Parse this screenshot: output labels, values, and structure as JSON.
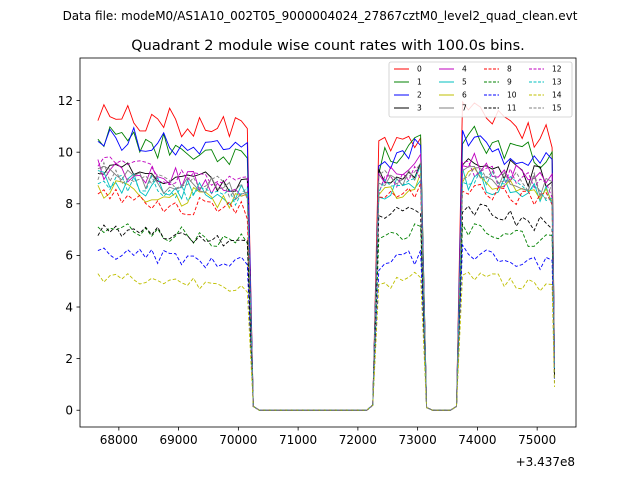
{
  "header": {
    "datafile": "Data file: modeM0/AS1A10_002T05_9000004024_27867cztM0_level2_quad_clean.evt"
  },
  "chart_data": {
    "type": "line",
    "title": "Quadrant 2 module wise count rates with 100.0s bins.",
    "xlabel": "",
    "ylabel": "",
    "x_offset_label": "+3.437e8",
    "xlim": [
      67350,
      75650
    ],
    "ylim": [
      -0.65,
      13.65
    ],
    "x_ticks": [
      68000,
      69000,
      70000,
      71000,
      72000,
      73000,
      74000,
      75000
    ],
    "x_tick_labels": [
      "68000",
      "69000",
      "70000",
      "71000",
      "72000",
      "73000",
      "74000",
      "75000"
    ],
    "y_ticks": [
      0,
      2,
      4,
      6,
      8,
      10,
      12
    ],
    "y_tick_labels": [
      "0",
      "2",
      "4",
      "6",
      "8",
      "10",
      "12"
    ],
    "grid": false,
    "legend_position": "top-right",
    "legend_columns": 4,
    "bins": {
      "x_step": 100,
      "segment1_start": 67650,
      "segment1_end": 70150,
      "gap1": [
        70250,
        72250
      ],
      "segment2_start": 72250,
      "segment2_end": 73050,
      "gap2": [
        73150,
        73650
      ],
      "segment3_start": 73750,
      "segment3_end": 75250
    },
    "series": [
      {
        "name": "0",
        "color": "#ff0000",
        "dash": "solid",
        "mean1": 11.2,
        "mean2": 10.5,
        "mean3": 11.0
      },
      {
        "name": "1",
        "color": "#008000",
        "dash": "solid",
        "mean1": 10.2,
        "mean2": 9.9,
        "mean3": 10.2
      },
      {
        "name": "2",
        "color": "#0000ff",
        "dash": "solid",
        "mean1": 10.3,
        "mean2": 9.9,
        "mean3": 10.0
      },
      {
        "name": "3",
        "color": "#000000",
        "dash": "solid",
        "mean1": 9.0,
        "mean2": 9.2,
        "mean3": 9.3
      },
      {
        "name": "4",
        "color": "#bf00bf",
        "dash": "solid",
        "mean1": 9.0,
        "mean2": 9.3,
        "mean3": 9.3
      },
      {
        "name": "5",
        "color": "#00bfbf",
        "dash": "solid",
        "mean1": 8.6,
        "mean2": 8.8,
        "mean3": 8.6
      },
      {
        "name": "6",
        "color": "#bfbf00",
        "dash": "solid",
        "mean1": 8.3,
        "mean2": 8.6,
        "mean3": 8.7
      },
      {
        "name": "7",
        "color": "#808080",
        "dash": "solid",
        "mean1": 8.8,
        "mean2": 9.0,
        "mean3": 9.0
      },
      {
        "name": "8",
        "color": "#ff0000",
        "dash": "dashed",
        "mean1": 8.0,
        "mean2": 8.4,
        "mean3": 8.4
      },
      {
        "name": "9",
        "color": "#008000",
        "dash": "dashed",
        "mean1": 6.8,
        "mean2": 6.9,
        "mean3": 6.8
      },
      {
        "name": "10",
        "color": "#0000ff",
        "dash": "dashed",
        "mean1": 5.9,
        "mean2": 5.8,
        "mean3": 5.9
      },
      {
        "name": "11",
        "color": "#000000",
        "dash": "dashed",
        "mean1": 6.8,
        "mean2": 7.7,
        "mean3": 7.5
      },
      {
        "name": "12",
        "color": "#bf00bf",
        "dash": "dashed",
        "mean1": 9.1,
        "mean2": 9.1,
        "mean3": 9.0
      },
      {
        "name": "13",
        "color": "#00bfbf",
        "dash": "dashed",
        "mean1": 8.6,
        "mean2": 8.9,
        "mean3": 8.8
      },
      {
        "name": "14",
        "color": "#bfbf00",
        "dash": "dashed",
        "mean1": 5.0,
        "mean2": 5.0,
        "mean3": 5.0
      },
      {
        "name": "15",
        "color": "#808080",
        "dash": "dashed",
        "mean1": 8.9,
        "mean2": 9.2,
        "mean3": 9.0
      }
    ]
  }
}
